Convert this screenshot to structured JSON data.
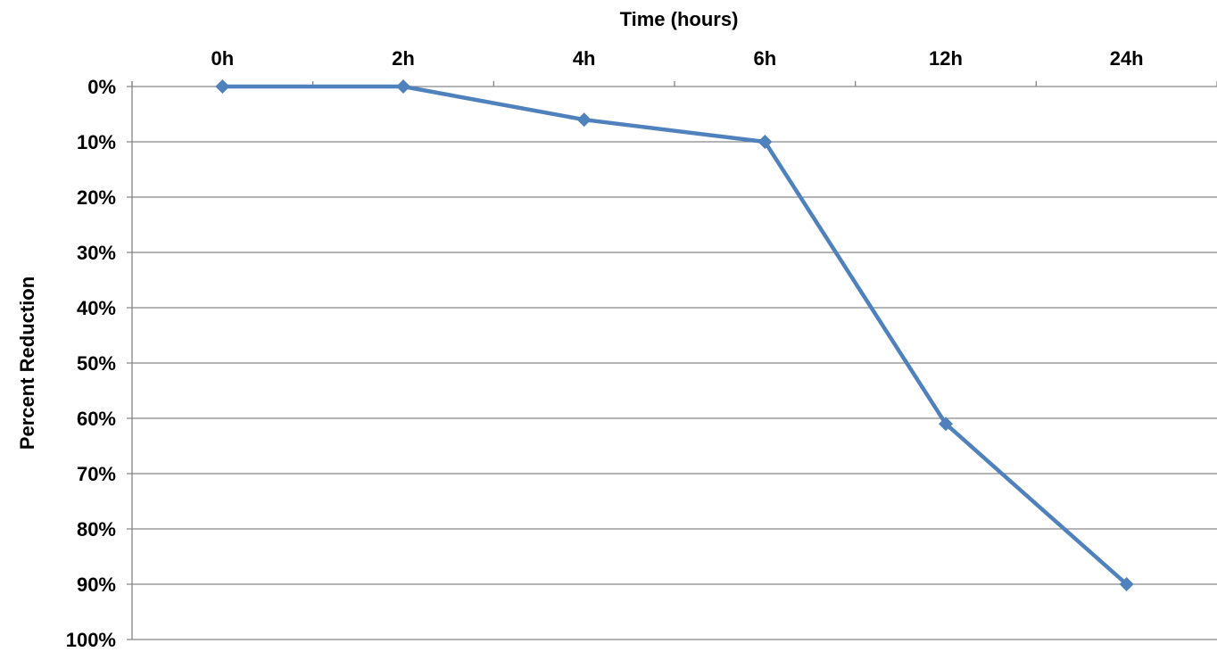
{
  "colors": {
    "series": "#4F81BD",
    "grid": "#868686",
    "text": "#000000"
  },
  "chart_data": {
    "type": "line",
    "x_axis_position": "top",
    "y_axis_inverted": true,
    "categories": [
      "0h",
      "2h",
      "4h",
      "6h",
      "12h",
      "24h"
    ],
    "xlabel": "Time (hours)",
    "ylabel": "Percent Reduction",
    "ylim": [
      0,
      100
    ],
    "yticks": [
      "0%",
      "10%",
      "20%",
      "30%",
      "40%",
      "50%",
      "60%",
      "70%",
      "80%",
      "90%",
      "100%"
    ],
    "grid": true,
    "marker": "diamond",
    "series": [
      {
        "values": [
          0,
          0,
          6,
          10,
          61,
          90
        ]
      }
    ]
  }
}
